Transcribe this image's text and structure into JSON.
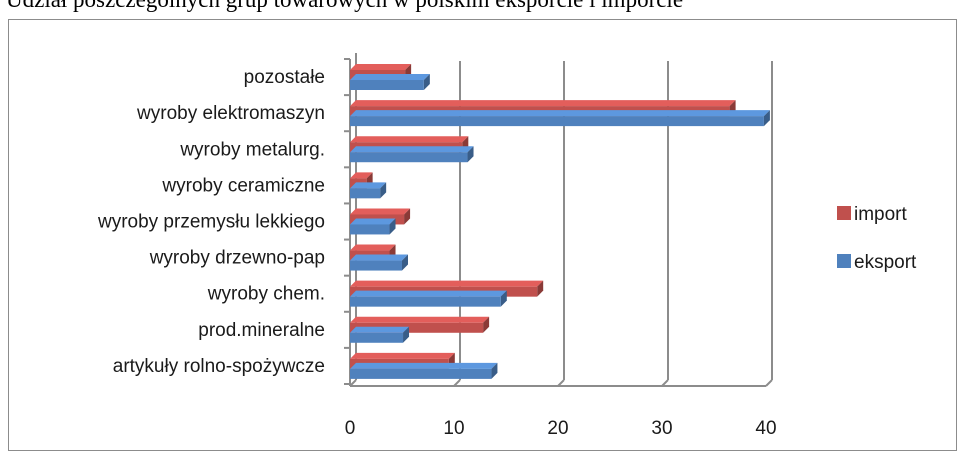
{
  "page": {
    "title": "Udział poszczególnych grup towarowych w polskim eksporcie i imporcie"
  },
  "colors": {
    "import": "#c0504d",
    "eksport": "#4f81bd",
    "grid": "#8c8c8c"
  },
  "chart_data": {
    "type": "bar",
    "orientation": "horizontal",
    "style": "3d-clustered",
    "categories": [
      "artykuły rolno-spożywcze",
      "prod.mineralne",
      "wyroby chem.",
      "wyroby drzewno-pap",
      "wyroby przemysłu lekkiego",
      "wyroby ceramiczne",
      "wyroby metalurg.",
      "wyroby elektromaszyn",
      "pozostałe"
    ],
    "series": [
      {
        "name": "import",
        "values": [
          9.5,
          12.8,
          18,
          3.8,
          5.2,
          1.6,
          10.8,
          36.5,
          5.3
        ]
      },
      {
        "name": "eksport",
        "values": [
          13.6,
          5.1,
          14.5,
          5,
          3.8,
          2.9,
          11.3,
          39.8,
          7.1
        ]
      }
    ],
    "xlim": [
      0,
      40
    ],
    "xticks": [
      0,
      10,
      20,
      30,
      40
    ],
    "grid": true,
    "legend": "right"
  }
}
